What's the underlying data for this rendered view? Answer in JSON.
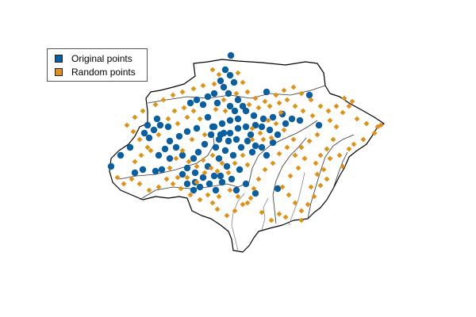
{
  "legend": {
    "items": [
      {
        "label": "Original points",
        "color": "#0a5fa0",
        "marker": "circle"
      },
      {
        "label": "Random points",
        "color": "#e09112",
        "marker": "diamond"
      }
    ]
  },
  "map": {
    "background": "#ffffff",
    "outer_border_color": "#000000",
    "basin_border_color": "#333333",
    "river_color": "#777777"
  }
}
